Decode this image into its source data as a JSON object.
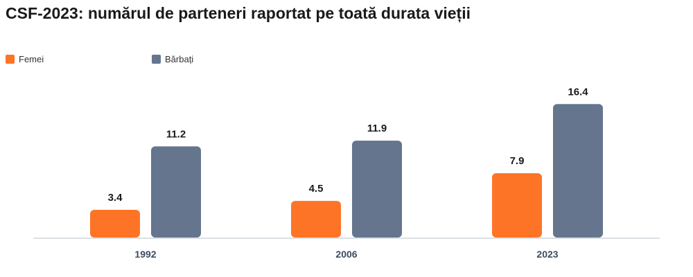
{
  "chart_data": {
    "type": "bar",
    "title": "CSF-2023: numărul de parteneri raportat pe toată durata vieții",
    "categories": [
      "1992",
      "2006",
      "2023"
    ],
    "series": [
      {
        "name": "Femei",
        "values": [
          3.4,
          4.5,
          7.9
        ],
        "color": "#fe7426"
      },
      {
        "name": "Bărbați",
        "values": [
          11.2,
          11.9,
          16.4
        ],
        "color": "#65758d"
      }
    ],
    "legend_position": "top-left",
    "grid": false,
    "data_labels": true
  }
}
